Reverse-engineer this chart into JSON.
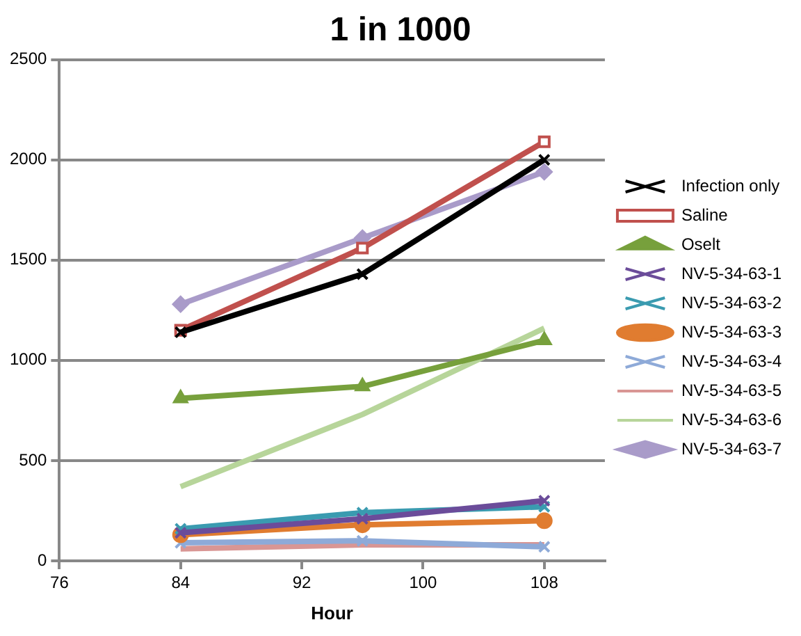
{
  "chart_data": {
    "type": "line",
    "title": "1 in 1000",
    "xlabel": "Hour",
    "x": [
      84,
      96,
      108
    ],
    "xlim": [
      76,
      112
    ],
    "xticks": [
      76,
      84,
      92,
      100,
      108
    ],
    "ylim": [
      0,
      2500
    ],
    "yticks": [
      0,
      500,
      1000,
      1500,
      2000,
      2500
    ],
    "grid": "y",
    "legend": "right",
    "series": [
      {
        "name": "Infection only",
        "color": "#000000",
        "marker": "cross",
        "values": [
          1140,
          1430,
          2000
        ]
      },
      {
        "name": "Saline",
        "color": "#c0504d",
        "marker": "square",
        "values": [
          1150,
          1560,
          2090
        ]
      },
      {
        "name": "Oselt",
        "color": "#77a03c",
        "marker": "triangle",
        "values": [
          810,
          870,
          1100
        ]
      },
      {
        "name": "NV-5-34-63-1",
        "color": "#6b4c9a",
        "marker": "cross",
        "values": [
          140,
          210,
          300
        ]
      },
      {
        "name": "NV-5-34-63-2",
        "color": "#3a9bb0",
        "marker": "cross",
        "values": [
          160,
          240,
          270
        ]
      },
      {
        "name": "NV-5-34-63-3",
        "color": "#e07c30",
        "marker": "circle",
        "values": [
          130,
          180,
          200
        ]
      },
      {
        "name": "NV-5-34-63-4",
        "color": "#8eaad8",
        "marker": "cross",
        "values": [
          90,
          100,
          70
        ]
      },
      {
        "name": "NV-5-34-63-5",
        "color": "#d99694",
        "marker": "none",
        "values": [
          60,
          80,
          80
        ]
      },
      {
        "name": "NV-5-34-63-6",
        "color": "#b7d59a",
        "marker": "none",
        "values": [
          370,
          730,
          1160
        ]
      },
      {
        "name": "NV-5-34-63-7",
        "color": "#a99bc9",
        "marker": "diamond",
        "values": [
          1280,
          1610,
          1940
        ]
      }
    ]
  }
}
